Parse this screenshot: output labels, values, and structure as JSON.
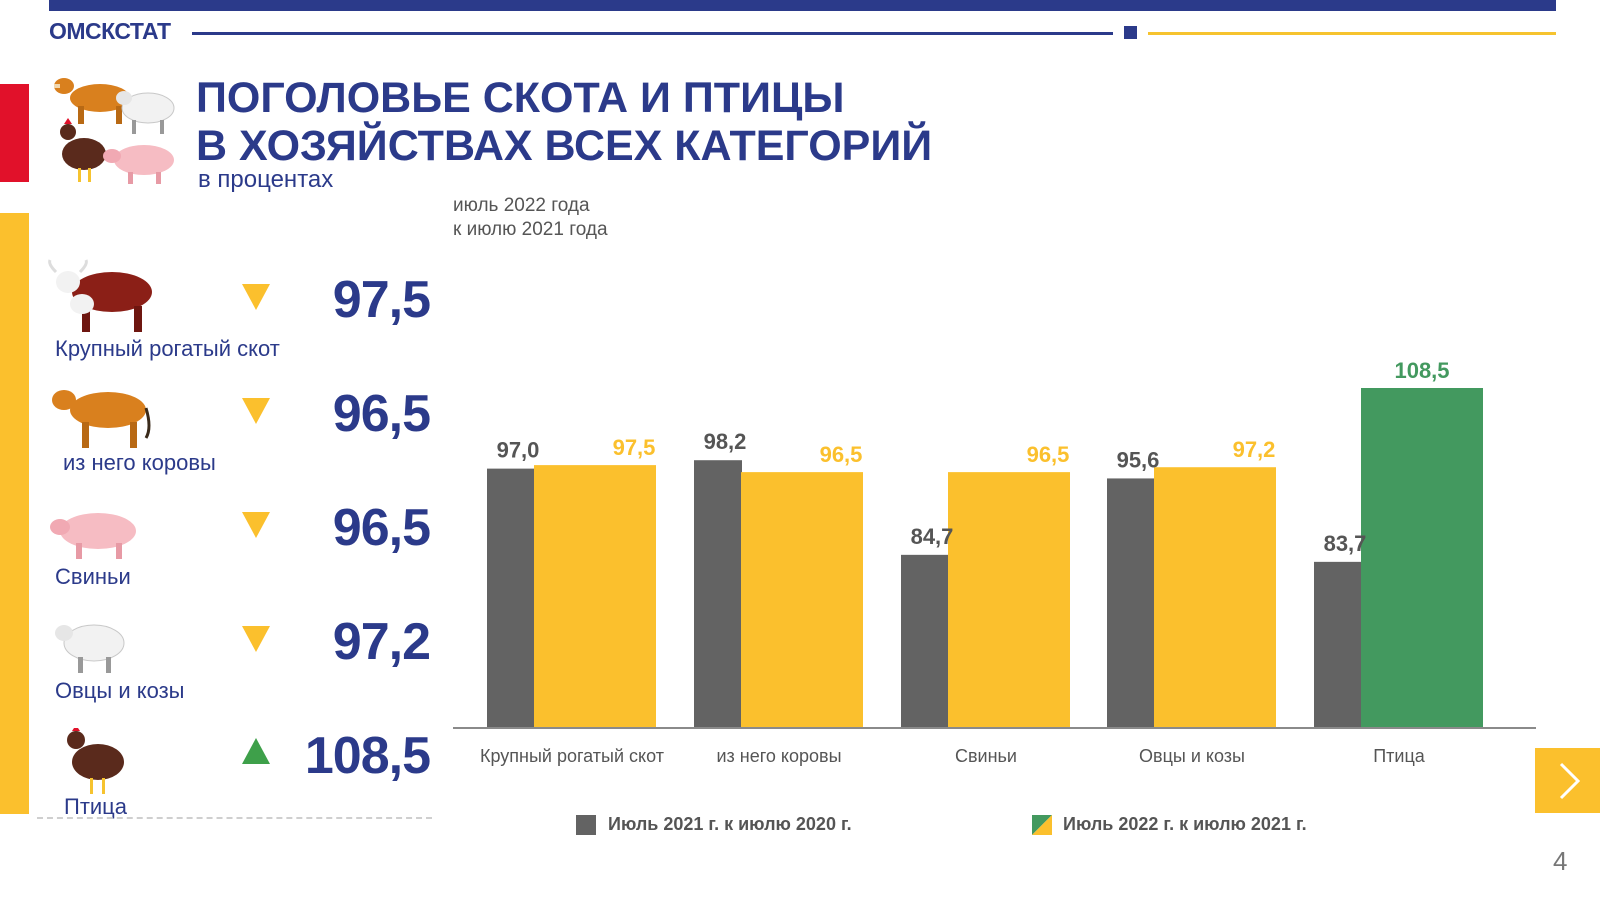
{
  "header": {
    "brand": "ОМСКСТАТ",
    "title_line1": "ПОГОЛОВЬЕ СКОТА И ПТИЦЫ",
    "title_line2": "В ХОЗЯЙСТВАХ ВСЕХ КАТЕГОРИЙ",
    "subtitle": "в процентах"
  },
  "summary": {
    "note_line1": "июль 2022 года",
    "note_line2": "к июлю 2021 года",
    "rows": [
      {
        "label": "Крупный рогатый скот",
        "value": "97,5",
        "trend": "down",
        "icon": "cattle-icon"
      },
      {
        "label": "из него коровы",
        "value": "96,5",
        "trend": "down",
        "icon": "cow-icon"
      },
      {
        "label": "Свиньи",
        "value": "96,5",
        "trend": "down",
        "icon": "pig-icon"
      },
      {
        "label": "Овцы  и козы",
        "value": "97,2",
        "trend": "down",
        "icon": "sheep-icon"
      },
      {
        "label": "Птица",
        "value": "108,5",
        "trend": "up",
        "icon": "chicken-icon"
      }
    ]
  },
  "colors": {
    "brand_blue": "#2b3a8a",
    "accent_yellow": "#fbc02d",
    "accent_red": "#e1112a",
    "series_gray": "#636363",
    "series_yellow": "#fbc02d",
    "highlight_green": "#43995f",
    "up_green": "#3ea04a"
  },
  "chart_data": {
    "type": "bar",
    "categories": [
      "Крупный рогатый скот",
      "из него коровы",
      "Свиньи",
      "Овцы и козы",
      "Птица"
    ],
    "series": [
      {
        "name": "Июль 2021 г. к июлю 2020 г.",
        "values": [
          97.0,
          98.2,
          84.7,
          95.6,
          83.7
        ],
        "labels": [
          "97,0",
          "98,2",
          "84,7",
          "95,6",
          "83,7"
        ]
      },
      {
        "name": "Июль 2022 г. к июлю 2021 г.",
        "values": [
          97.5,
          96.5,
          96.5,
          97.2,
          108.5
        ],
        "labels": [
          "97,5",
          "96,5",
          "96,5",
          "97,2",
          "108,5"
        ]
      }
    ],
    "ylim": [
      60,
      110
    ],
    "grid": false,
    "legend": "bottom"
  },
  "footer": {
    "page_number": "4"
  }
}
